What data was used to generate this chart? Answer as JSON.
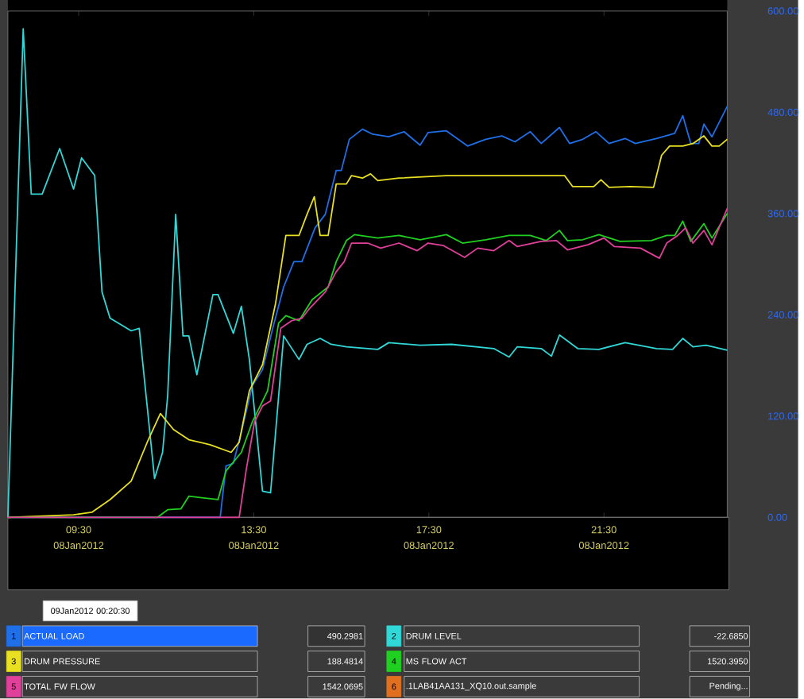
{
  "chart_data": {
    "type": "line",
    "xlim": [
      "2012-01-08T07:53",
      "2012-01-09T00:19"
    ],
    "ylim": [
      0,
      600
    ],
    "xticks": [
      {
        "value": "2012-01-08T09:30",
        "label": "09:30 08Jan2012"
      },
      {
        "value": "2012-01-08T13:30",
        "label": "13:30 08Jan2012"
      },
      {
        "value": "2012-01-08T17:30",
        "label": "17:30 08Jan2012"
      },
      {
        "value": "2012-01-08T21:30",
        "label": "21:30 08Jan2012"
      }
    ],
    "yticks": [
      {
        "value": 0,
        "label": "0.00"
      },
      {
        "value": 120,
        "label": "120.00"
      },
      {
        "value": 240,
        "label": "240.00"
      },
      {
        "value": 360,
        "label": "360.00"
      },
      {
        "value": 480,
        "label": "480.00"
      },
      {
        "value": 600,
        "label": "600.00"
      }
    ],
    "legend": "bottom",
    "marker": "none",
    "line_style": "solid",
    "series": [
      {
        "name": "ACTUAL LOAD",
        "color": "#1e6fe8",
        "x": [
          "2012-01-08T07:53",
          "2012-01-08T12:44",
          "2012-01-08T12:52",
          "2012-01-08T13:02",
          "2012-01-08T13:13",
          "2012-01-08T13:28",
          "2012-01-08T13:42",
          "2012-01-08T13:56",
          "2012-01-08T14:11",
          "2012-01-08T14:25",
          "2012-01-08T14:36",
          "2012-01-08T14:54",
          "2012-01-08T15:08",
          "2012-01-08T15:23",
          "2012-01-08T15:30",
          "2012-01-08T15:41",
          "2012-01-08T15:59",
          "2012-01-08T16:13",
          "2012-01-08T16:35",
          "2012-01-08T16:56",
          "2012-01-08T17:18",
          "2012-01-08T17:29",
          "2012-01-08T17:54",
          "2012-01-08T18:23",
          "2012-01-08T18:48",
          "2012-01-08T19:10",
          "2012-01-08T19:28",
          "2012-01-08T19:49",
          "2012-01-08T20:04",
          "2012-01-08T20:29",
          "2012-01-08T20:43",
          "2012-01-08T21:01",
          "2012-01-08T21:19",
          "2012-01-08T21:37",
          "2012-01-08T21:59",
          "2012-01-08T22:13",
          "2012-01-08T22:42",
          "2012-01-08T23:07",
          "2012-01-08T23:18",
          "2012-01-08T23:29",
          "2012-01-08T23:40",
          "2012-01-08T23:47",
          "2012-01-08T23:58",
          "2012-01-09T00:19"
        ],
        "values": [
          0,
          0,
          61,
          64,
          101,
          156,
          175,
          224,
          273,
          303,
          303,
          343,
          359,
          411,
          411,
          448,
          460,
          454,
          451,
          457,
          441,
          456,
          458,
          440,
          448,
          452,
          445,
          457,
          443,
          462,
          443,
          448,
          457,
          443,
          449,
          443,
          449,
          455,
          476,
          443,
          443,
          466,
          451,
          487
        ]
      },
      {
        "name": "DRUM LEVEL",
        "color": "#30d8d8",
        "x": [
          "2012-01-08T07:53",
          "2012-01-08T08:14",
          "2012-01-08T08:25",
          "2012-01-08T08:40",
          "2012-01-08T09:04",
          "2012-01-08T09:23",
          "2012-01-08T09:34",
          "2012-01-08T09:52",
          "2012-01-08T10:02",
          "2012-01-08T10:13",
          "2012-01-08T10:42",
          "2012-01-08T10:53",
          "2012-01-08T11:14",
          "2012-01-08T11:25",
          "2012-01-08T11:32",
          "2012-01-08T11:43",
          "2012-01-08T11:53",
          "2012-01-08T12:01",
          "2012-01-08T12:12",
          "2012-01-08T12:34",
          "2012-01-08T12:41",
          "2012-01-08T13:02",
          "2012-01-08T13:13",
          "2012-01-08T13:24",
          "2012-01-08T13:42",
          "2012-01-08T13:53",
          "2012-01-08T14:11",
          "2012-01-08T14:32",
          "2012-01-08T14:43",
          "2012-01-08T15:01",
          "2012-01-08T15:16",
          "2012-01-08T15:37",
          "2012-01-08T16:20",
          "2012-01-08T16:35",
          "2012-01-08T17:18",
          "2012-01-08T18:01",
          "2012-01-08T18:59",
          "2012-01-08T19:20",
          "2012-01-08T19:31",
          "2012-01-08T20:04",
          "2012-01-08T20:18",
          "2012-01-08T20:29",
          "2012-01-08T20:54",
          "2012-01-08T21:23",
          "2012-01-08T21:59",
          "2012-01-08T22:42",
          "2012-01-08T23:04",
          "2012-01-08T23:18",
          "2012-01-08T23:32",
          "2012-01-08T23:50",
          "2012-01-09T00:19"
        ],
        "values": [
          0,
          579,
          383,
          383,
          437,
          389,
          426,
          405,
          267,
          236,
          221,
          224,
          46,
          77,
          144,
          359,
          215,
          215,
          169,
          264,
          264,
          218,
          250,
          187,
          31,
          29,
          215,
          187,
          205,
          212,
          205,
          202,
          199,
          207,
          204,
          205,
          200,
          190,
          202,
          200,
          191,
          216,
          200,
          199,
          207,
          200,
          199,
          212,
          202,
          204,
          198
        ]
      },
      {
        "name": "DRUM PRESSURE",
        "color": "#e8e020",
        "x": [
          "2012-01-08T07:53",
          "2012-01-08T09:23",
          "2012-01-08T09:48",
          "2012-01-08T10:13",
          "2012-01-08T10:42",
          "2012-01-08T11:04",
          "2012-01-08T11:22",
          "2012-01-08T11:40",
          "2012-01-08T12:01",
          "2012-01-08T12:30",
          "2012-01-08T12:59",
          "2012-01-08T13:10",
          "2012-01-08T13:24",
          "2012-01-08T13:42",
          "2012-01-08T14:00",
          "2012-01-08T14:14",
          "2012-01-08T14:32",
          "2012-01-08T14:43",
          "2012-01-08T14:53",
          "2012-01-08T15:01",
          "2012-01-08T15:12",
          "2012-01-08T15:23",
          "2012-01-08T15:37",
          "2012-01-08T15:44",
          "2012-01-08T15:59",
          "2012-01-08T16:10",
          "2012-01-08T16:20",
          "2012-01-08T16:49",
          "2012-01-08T17:54",
          "2012-01-08T19:13",
          "2012-01-08T20:36",
          "2012-01-08T20:47",
          "2012-01-08T21:16",
          "2012-01-08T21:26",
          "2012-01-08T21:37",
          "2012-01-08T22:06",
          "2012-01-08T22:38",
          "2012-01-08T22:49",
          "2012-01-08T23:00",
          "2012-01-08T23:18",
          "2012-01-08T23:32",
          "2012-01-08T23:47",
          "2012-01-08T23:58",
          "2012-01-09T00:08",
          "2012-01-09T00:19"
        ],
        "values": [
          0,
          3,
          6,
          21,
          43,
          89,
          123,
          104,
          92,
          86,
          77,
          89,
          150,
          181,
          254,
          334,
          334,
          359,
          380,
          334,
          334,
          395,
          395,
          405,
          402,
          407,
          399,
          402,
          405,
          405,
          405,
          392,
          392,
          400,
          391,
          392,
          391,
          429,
          440,
          440,
          443,
          452,
          440,
          440,
          448
        ]
      },
      {
        "name": "MS FLOW ACT",
        "color": "#20d020",
        "x": [
          "2012-01-08T07:53",
          "2012-01-08T11:18",
          "2012-01-08T11:32",
          "2012-01-08T11:50",
          "2012-01-08T12:01",
          "2012-01-08T12:41",
          "2012-01-08T12:52",
          "2012-01-08T13:13",
          "2012-01-08T13:28",
          "2012-01-08T13:49",
          "2012-01-08T14:04",
          "2012-01-08T14:14",
          "2012-01-08T14:32",
          "2012-01-08T14:50",
          "2012-01-08T15:12",
          "2012-01-08T15:23",
          "2012-01-08T15:37",
          "2012-01-08T15:48",
          "2012-01-08T16:20",
          "2012-01-08T16:49",
          "2012-01-08T17:18",
          "2012-01-08T17:54",
          "2012-01-08T18:16",
          "2012-01-08T18:48",
          "2012-01-08T19:20",
          "2012-01-08T19:49",
          "2012-01-08T20:11",
          "2012-01-08T20:29",
          "2012-01-08T20:40",
          "2012-01-08T21:01",
          "2012-01-08T21:23",
          "2012-01-08T21:52",
          "2012-01-08T22:35",
          "2012-01-08T22:56",
          "2012-01-08T23:07",
          "2012-01-08T23:18",
          "2012-01-08T23:29",
          "2012-01-08T23:47",
          "2012-01-08T23:58",
          "2012-01-09T00:19"
        ],
        "values": [
          0,
          0,
          9,
          10,
          25,
          21,
          55,
          77,
          113,
          150,
          230,
          239,
          233,
          258,
          273,
          303,
          328,
          335,
          331,
          334,
          329,
          335,
          325,
          329,
          334,
          334,
          328,
          340,
          328,
          329,
          335,
          327,
          328,
          334,
          334,
          351,
          327,
          348,
          331,
          360
        ]
      },
      {
        "name": "TOTAL FW FLOW",
        "color": "#e0409a",
        "x": [
          "2012-01-08T07:53",
          "2012-01-08T13:10",
          "2012-01-08T13:20",
          "2012-01-08T13:31",
          "2012-01-08T13:42",
          "2012-01-08T13:53",
          "2012-01-08T14:07",
          "2012-01-08T14:22",
          "2012-01-08T14:36",
          "2012-01-08T14:47",
          "2012-01-08T15:08",
          "2012-01-08T15:23",
          "2012-01-08T15:34",
          "2012-01-08T15:44",
          "2012-01-08T16:06",
          "2012-01-08T16:24",
          "2012-01-08T16:49",
          "2012-01-08T17:14",
          "2012-01-08T17:29",
          "2012-01-08T17:50",
          "2012-01-08T18:19",
          "2012-01-08T18:37",
          "2012-01-08T18:59",
          "2012-01-08T19:20",
          "2012-01-08T19:31",
          "2012-01-08T20:04",
          "2012-01-08T20:25",
          "2012-01-08T20:40",
          "2012-01-08T21:08",
          "2012-01-08T21:30",
          "2012-01-08T21:44",
          "2012-01-08T22:20",
          "2012-01-08T22:46",
          "2012-01-08T22:56",
          "2012-01-08T23:11",
          "2012-01-08T23:22",
          "2012-01-08T23:32",
          "2012-01-08T23:47",
          "2012-01-08T23:58",
          "2012-01-09T00:19"
        ],
        "values": [
          0,
          0,
          58,
          113,
          132,
          138,
          224,
          233,
          236,
          248,
          267,
          291,
          303,
          325,
          325,
          319,
          325,
          316,
          325,
          322,
          308,
          319,
          316,
          328,
          321,
          327,
          328,
          317,
          323,
          331,
          321,
          319,
          307,
          325,
          334,
          343,
          325,
          340,
          323,
          366
        ]
      }
    ],
    "annotations": [
      "09Jan2012 00:20:30",
      "1",
      "2",
      "3",
      "4",
      "5",
      "6",
      "490.2981",
      "-22.6850",
      "188.4814",
      "1520.3950",
      "1542.0695",
      "Pending...",
      ".1LAB41AA131_XQ10.out.sample"
    ]
  }
}
